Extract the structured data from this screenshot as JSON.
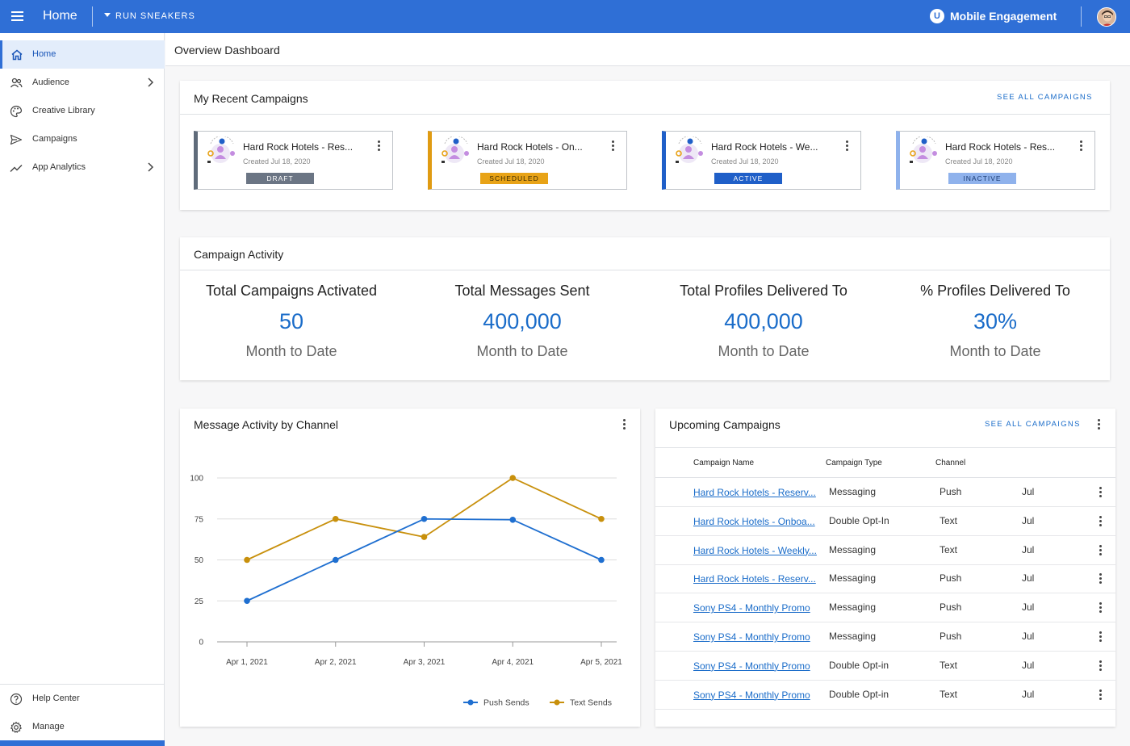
{
  "topbar": {
    "title": "Home",
    "brand_selector": "RUN SNEAKERS",
    "app_logo_letter": "U",
    "app_name": "Mobile Engagement",
    "color": "#2f6fd6"
  },
  "sidebar": {
    "items": [
      {
        "label": "Home",
        "icon": "home-icon"
      },
      {
        "label": "Audience",
        "icon": "people-icon"
      },
      {
        "label": "Creative Library",
        "icon": "palette-icon"
      },
      {
        "label": "Campaigns",
        "icon": "send-icon"
      },
      {
        "label": "App Analytics",
        "icon": "trending-icon"
      }
    ],
    "bottom_items": [
      {
        "label": "Help Center",
        "icon": "help-icon"
      },
      {
        "label": "Manage",
        "icon": "gear-icon"
      }
    ]
  },
  "page": {
    "title": "Overview Dashboard"
  },
  "recent_campaigns": {
    "title": "My Recent Campaigns",
    "see_all": "SEE ALL CAMPAIGNS",
    "tiles": [
      {
        "name": "Hard Rock Hotels - Res...",
        "created": "Created Jul 18, 2020",
        "status": "DRAFT",
        "accent": "#5f6b7a",
        "badge_bg": "#6b7584",
        "badge_fg": "#ffffff"
      },
      {
        "name": "Hard Rock Hotels - On...",
        "created": "Created Jul 18, 2020",
        "status": "SCHEDULED",
        "accent": "#e09b12",
        "badge_bg": "#e8a317",
        "badge_fg": "#3a2a00"
      },
      {
        "name": "Hard Rock Hotels - We...",
        "created": "Created Jul 18, 2020",
        "status": "ACTIVE",
        "accent": "#1f5fc8",
        "badge_bg": "#1f5fc8",
        "badge_fg": "#ffffff"
      },
      {
        "name": "Hard Rock Hotels - Res...",
        "created": "Created Jul 18, 2020",
        "status": "INACTIVE",
        "accent": "#8fb2ec",
        "badge_bg": "#8fb2ec",
        "badge_fg": "#1b3d75"
      }
    ]
  },
  "activity": {
    "title": "Campaign Activity",
    "stats": [
      {
        "label": "Total Campaigns Activated",
        "value": "50",
        "sub": "Month to Date"
      },
      {
        "label": "Total Messages Sent",
        "value": "400,000",
        "sub": "Month to Date"
      },
      {
        "label": "Total Profiles Delivered To",
        "value": "400,000",
        "sub": "Month to Date"
      },
      {
        "label": "% Profiles Delivered To",
        "value": "30%",
        "sub": "Month to Date"
      }
    ]
  },
  "message_activity": {
    "title": "Message Activity by Channel"
  },
  "chart_data": {
    "type": "line",
    "title": "Message Activity by Channel",
    "xlabel": "",
    "ylabel": "",
    "categories": [
      "Apr 1, 2021",
      "Apr 2, 2021",
      "Apr 3, 2021",
      "Apr 4, 2021",
      "Apr 5, 2021"
    ],
    "ylim": [
      0,
      100
    ],
    "yticks": [
      0,
      25,
      50,
      75,
      100
    ],
    "grid": true,
    "legend": "bottom-right",
    "series": [
      {
        "name": "Push Sends",
        "color": "#1f6fd0",
        "values": [
          25,
          50,
          75,
          74.5,
          50
        ]
      },
      {
        "name": "Text Sends",
        "color": "#c8900c",
        "values": [
          50,
          75,
          64,
          100,
          75
        ]
      }
    ]
  },
  "upcoming": {
    "title": "Upcoming Campaigns",
    "see_all": "SEE ALL CAMPAIGNS",
    "columns": [
      "Campaign Name",
      "Campaign Type",
      "Channel"
    ],
    "rows": [
      {
        "name": "Hard Rock Hotels - Reserv...",
        "type": "Messaging",
        "channel": "Push",
        "date": "Jul"
      },
      {
        "name": "Hard Rock Hotels - Onboa...",
        "type": "Double Opt-In",
        "channel": "Text",
        "date": "Jul"
      },
      {
        "name": "Hard Rock Hotels - Weekly...",
        "type": "Messaging",
        "channel": "Text",
        "date": "Jul"
      },
      {
        "name": "Hard Rock Hotels - Reserv...",
        "type": "Messaging",
        "channel": "Push",
        "date": "Jul"
      },
      {
        "name": "Sony PS4 - Monthly Promo",
        "type": "Messaging",
        "channel": "Push",
        "date": "Jul"
      },
      {
        "name": "Sony PS4 - Monthly Promo",
        "type": "Messaging",
        "channel": "Push",
        "date": "Jul"
      },
      {
        "name": "Sony PS4 - Monthly Promo",
        "type": "Double Opt-in",
        "channel": "Text",
        "date": "Jul"
      },
      {
        "name": "Sony PS4 - Monthly Promo",
        "type": "Double Opt-in",
        "channel": "Text",
        "date": "Jul"
      }
    ]
  }
}
